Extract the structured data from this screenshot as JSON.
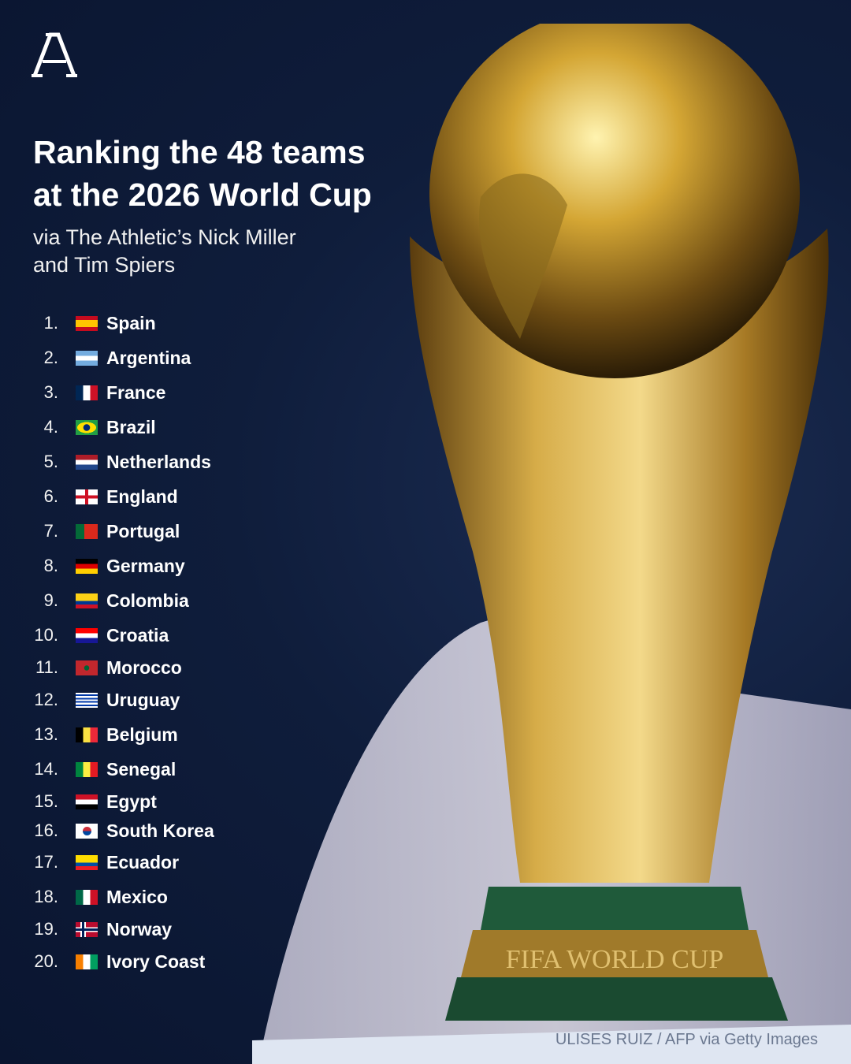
{
  "brand": {
    "logo_text": "A",
    "name": "The Athletic"
  },
  "title_lines": [
    "Ranking the 48 teams",
    "at the 2026 World Cup"
  ],
  "subtitle_lines": [
    "via The Athletic’s Nick Miller",
    "and Tim Spiers"
  ],
  "rankings": [
    {
      "rank": "1.",
      "team": "Spain",
      "flag": {
        "dir": "h",
        "colors": [
          "#c60b1e",
          "#ffc400",
          "#ffc400",
          "#c60b1e"
        ]
      }
    },
    {
      "rank": "2.",
      "team": "Argentina",
      "flag": {
        "dir": "h",
        "colors": [
          "#74acdf",
          "#ffffff",
          "#74acdf"
        ]
      }
    },
    {
      "rank": "3.",
      "team": "France",
      "flag": {
        "dir": "v",
        "colors": [
          "#002654",
          "#ffffff",
          "#ce1126"
        ]
      }
    },
    {
      "rank": "4.",
      "team": "Brazil",
      "flag": {
        "dir": "h",
        "colors": [
          "#229e45"
        ],
        "emblem": "brazil"
      }
    },
    {
      "rank": "5.",
      "team": "Netherlands",
      "flag": {
        "dir": "h",
        "colors": [
          "#ae1c28",
          "#ffffff",
          "#21468b"
        ]
      }
    },
    {
      "rank": "6.",
      "team": "England",
      "flag": {
        "dir": "h",
        "colors": [
          "#ffffff"
        ],
        "emblem": "cross-red"
      }
    },
    {
      "rank": "7.",
      "team": "Portugal",
      "flag": {
        "dir": "v",
        "colors": [
          "#046a38",
          "#046a38",
          "#da291c",
          "#da291c",
          "#da291c"
        ]
      }
    },
    {
      "rank": "8.",
      "team": "Germany",
      "flag": {
        "dir": "h",
        "colors": [
          "#000000",
          "#dd0000",
          "#ffce00"
        ]
      }
    },
    {
      "rank": "9.",
      "team": "Colombia",
      "flag": {
        "dir": "h",
        "colors": [
          "#fcd116",
          "#fcd116",
          "#003893",
          "#ce1126"
        ]
      }
    },
    {
      "rank": "10.",
      "team": "Croatia",
      "flag": {
        "dir": "h",
        "colors": [
          "#ff0000",
          "#ffffff",
          "#171796"
        ]
      }
    },
    {
      "rank": "11.",
      "team": "Morocco",
      "flag": {
        "dir": "h",
        "colors": [
          "#c1272d"
        ],
        "emblem": "star-green"
      }
    },
    {
      "rank": "12.",
      "team": "Uruguay",
      "flag": {
        "dir": "h",
        "colors": [
          "#ffffff",
          "#0038a8",
          "#ffffff",
          "#0038a8",
          "#ffffff",
          "#0038a8",
          "#ffffff",
          "#0038a8",
          "#ffffff"
        ]
      }
    },
    {
      "rank": "13.",
      "team": "Belgium",
      "flag": {
        "dir": "v",
        "colors": [
          "#000000",
          "#fae042",
          "#ed2939"
        ]
      }
    },
    {
      "rank": "14.",
      "team": "Senegal",
      "flag": {
        "dir": "v",
        "colors": [
          "#00853f",
          "#fdef42",
          "#e31b23"
        ]
      }
    },
    {
      "rank": "15.",
      "team": "Egypt",
      "flag": {
        "dir": "h",
        "colors": [
          "#ce1126",
          "#ffffff",
          "#000000"
        ]
      }
    },
    {
      "rank": "16.",
      "team": "South Korea",
      "flag": {
        "dir": "h",
        "colors": [
          "#ffffff"
        ],
        "emblem": "taeguk"
      }
    },
    {
      "rank": "17.",
      "team": "Ecuador",
      "flag": {
        "dir": "h",
        "colors": [
          "#ffdd00",
          "#ffdd00",
          "#034ea2",
          "#ed1c24"
        ]
      }
    },
    {
      "rank": "18.",
      "team": "Mexico",
      "flag": {
        "dir": "v",
        "colors": [
          "#006847",
          "#ffffff",
          "#ce1126"
        ]
      }
    },
    {
      "rank": "19.",
      "team": "Norway",
      "flag": {
        "dir": "h",
        "colors": [
          "#ba0c2f"
        ],
        "emblem": "nordic"
      }
    },
    {
      "rank": "20.",
      "team": "Ivory Coast",
      "flag": {
        "dir": "v",
        "colors": [
          "#f77f00",
          "#ffffff",
          "#009e60"
        ]
      }
    }
  ],
  "photo": {
    "trophy_text": "FIFA WORLD CUP",
    "credit": "ULISES RUIZ / AFP via Getty Images"
  },
  "colors": {
    "background": "#0b1630",
    "gold": "#c9a13a"
  }
}
